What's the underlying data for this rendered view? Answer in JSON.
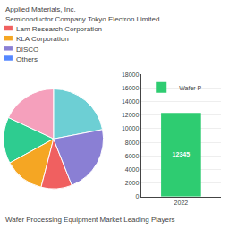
{
  "chart_data": [
    {
      "type": "pie",
      "title": "Wafer Processing Equipment Market Leading Players",
      "values": [
        22,
        18,
        15,
        13,
        10,
        22
      ],
      "colors": [
        "#6dcfd4",
        "#f5a0bc",
        "#2ecc90",
        "#f5a623",
        "#f06060",
        "#8a7fd4"
      ],
      "annotations": [
        {
          "text": "Applied Materials, Inc."
        },
        {
          "text": "Semiconductor Company Tokyo Electron Limited"
        },
        {
          "text": "Lam Research Corporation",
          "color": "#f06060"
        },
        {
          "text": "KLA Corporation",
          "color": "#f5a623"
        },
        {
          "text": "DISCO",
          "color": "#8a7fd4"
        },
        {
          "text": "Others",
          "color": "#5588ff"
        }
      ]
    },
    {
      "type": "bar",
      "categories": [
        "2022"
      ],
      "series": [
        {
          "name": "Wafer P",
          "color": "#2ecc71",
          "values": [
            12345
          ]
        }
      ],
      "ylim": [
        0,
        18000
      ],
      "yticks": [
        0,
        2000,
        4000,
        6000,
        8000,
        10000,
        12000,
        14000,
        16000,
        18000
      ],
      "grid": true,
      "legend": "upper left",
      "data_labels": true
    }
  ]
}
